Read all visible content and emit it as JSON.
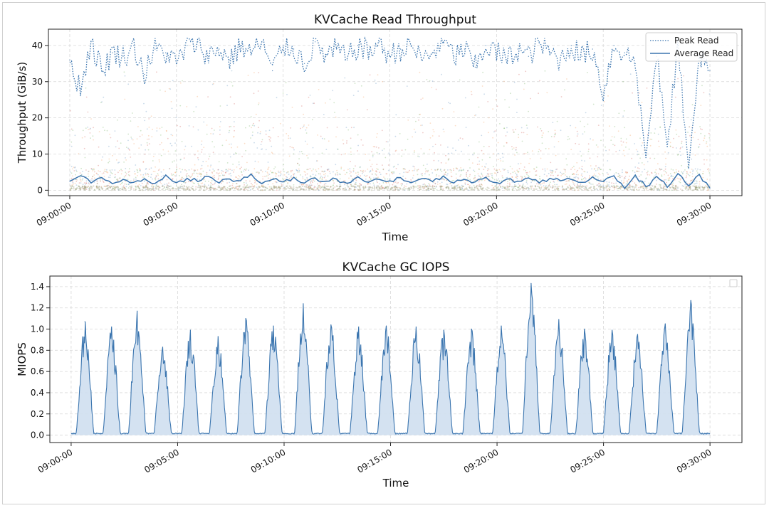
{
  "chart_data": [
    {
      "type": "line",
      "title": "KVCache Read Throughput",
      "xlabel": "Time",
      "ylabel": "Throughput (GiB/s)",
      "ylim": [
        -1.5,
        44.5
      ],
      "xlim_minutes": [
        -1.0,
        31.5
      ],
      "x_ticks": [
        "09:00:00",
        "09:05:00",
        "09:10:00",
        "09:15:00",
        "09:20:00",
        "09:25:00",
        "09:30:00"
      ],
      "y_ticks": [
        0,
        10,
        20,
        30,
        40
      ],
      "grid": true,
      "legend": "top-right",
      "colors": {
        "line": "#3b75af",
        "scatter": [
          "#3b75af",
          "#ef8636",
          "#519e3e",
          "#c53a32"
        ]
      },
      "series": [
        {
          "name": "Peak Read",
          "style": "dotted",
          "x_minutes": [
            0,
            0.5,
            1,
            1.5,
            2,
            2.5,
            3,
            3.5,
            4,
            4.5,
            5,
            5.5,
            6,
            6.5,
            7,
            7.5,
            8,
            8.5,
            9,
            9.5,
            10,
            10.5,
            11,
            11.5,
            12,
            12.5,
            13,
            13.5,
            14,
            14.5,
            15,
            15.5,
            16,
            16.5,
            17,
            17.5,
            18,
            18.5,
            19,
            19.5,
            20,
            20.5,
            21,
            21.5,
            22,
            22.5,
            23,
            23.5,
            24,
            24.5,
            25,
            25.5,
            26,
            26.5,
            27,
            27.5,
            28,
            28.5,
            29,
            29.5,
            30
          ],
          "values": [
            36,
            28,
            41,
            33,
            38,
            37,
            40,
            32,
            39,
            38,
            35,
            40,
            41,
            37,
            39,
            36,
            40,
            38,
            41,
            33,
            40,
            39,
            35,
            41,
            37,
            39,
            36,
            40,
            38,
            41,
            37,
            39,
            40,
            36,
            38,
            41,
            37,
            39,
            34,
            40,
            38,
            36,
            39,
            37,
            41,
            38,
            36,
            40,
            37,
            39,
            27,
            40,
            38,
            35,
            9,
            37,
            12,
            40,
            6,
            38,
            33
          ]
        },
        {
          "name": "Average Read",
          "style": "solid",
          "x_minutes": [
            0,
            0.5,
            1,
            1.5,
            2,
            2.5,
            3,
            3.5,
            4,
            4.5,
            5,
            5.5,
            6,
            6.5,
            7,
            7.5,
            8,
            8.5,
            9,
            9.5,
            10,
            10.5,
            11,
            11.5,
            12,
            12.5,
            13,
            13.5,
            14,
            14.5,
            15,
            15.5,
            16,
            16.5,
            17,
            17.5,
            18,
            18.5,
            19,
            19.5,
            20,
            20.5,
            21,
            21.5,
            22,
            22.5,
            23,
            23.5,
            24,
            24.5,
            25,
            25.5,
            26,
            26.5,
            27,
            27.5,
            28,
            28.5,
            29,
            29.5,
            30
          ],
          "values": [
            2.5,
            4,
            2,
            3.5,
            1.8,
            3,
            2.2,
            3.2,
            1.9,
            4.2,
            2.1,
            3.3,
            2.4,
            3.8,
            2.0,
            3.1,
            2.6,
            4.5,
            1.8,
            3.0,
            2.3,
            3.6,
            2.0,
            3.4,
            2.5,
            3.1,
            1.9,
            3.7,
            2.2,
            3.0,
            2.6,
            3.5,
            2.1,
            3.2,
            2.4,
            3.9,
            2.0,
            3.0,
            2.3,
            3.6,
            2.1,
            3.1,
            2.5,
            3.4,
            2.0,
            3.3,
            2.6,
            3.0,
            2.2,
            3.7,
            2.4,
            4.0,
            0.5,
            4.2,
            1.0,
            3.8,
            0.8,
            4.6,
            1.2,
            4.4,
            0.6
          ]
        }
      ]
    },
    {
      "type": "area",
      "title": "KVCache GC IOPS",
      "xlabel": "Time",
      "ylabel": "MIOPS",
      "ylim": [
        -0.07,
        1.5
      ],
      "xlim_minutes": [
        -1.0,
        31.5
      ],
      "x_ticks": [
        "09:00:00",
        "09:05:00",
        "09:10:00",
        "09:15:00",
        "09:20:00",
        "09:25:00",
        "09:30:00"
      ],
      "y_ticks": [
        "0.0",
        "0.2",
        "0.4",
        "0.6",
        "0.8",
        "1.0",
        "1.2",
        "1.4"
      ],
      "grid": true,
      "legend": "top-right (empty)",
      "colors": {
        "line": "#3b75af",
        "fill": "#cfdff0"
      },
      "peaks": {
        "x_minutes": [
          0.65,
          1.9,
          3.1,
          4.3,
          5.6,
          6.9,
          8.2,
          9.5,
          10.9,
          12.2,
          13.5,
          14.8,
          16.2,
          17.5,
          18.8,
          20.2,
          21.6,
          22.9,
          24.1,
          25.4,
          26.6,
          27.9,
          29.1
        ],
        "values": [
          1.07,
          1.02,
          1.17,
          0.83,
          0.99,
          0.93,
          1.1,
          1.03,
          1.24,
          1.04,
          1.02,
          1.03,
          1.02,
          0.99,
          1.0,
          1.03,
          1.43,
          1.09,
          1.0,
          0.99,
          0.95,
          1.05,
          1.27
        ]
      }
    }
  ]
}
